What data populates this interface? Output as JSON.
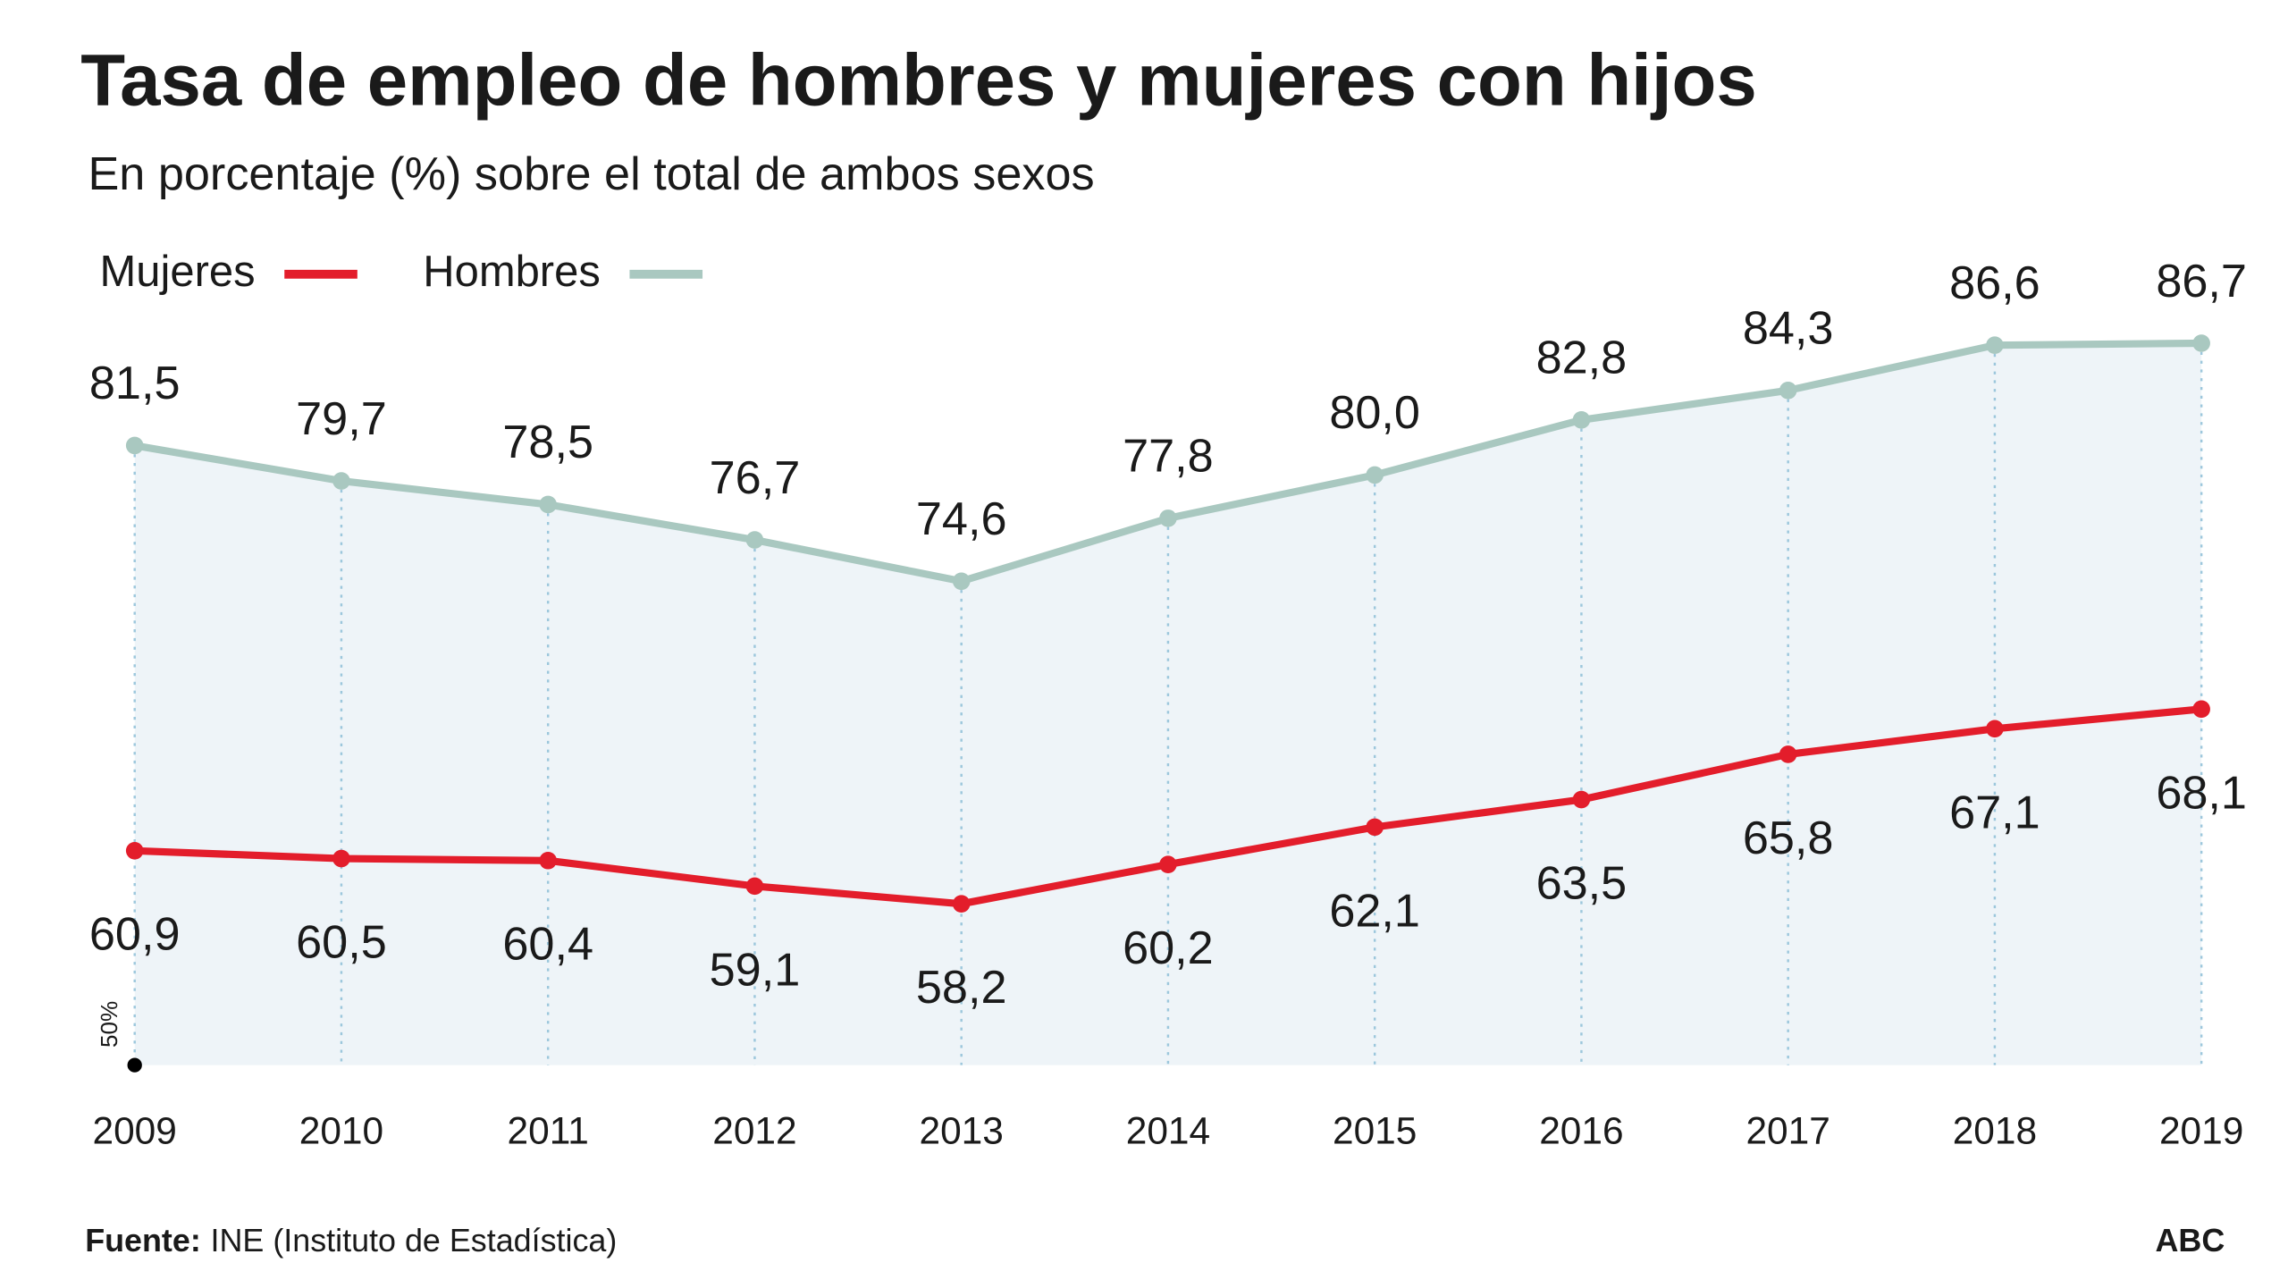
{
  "chart_data": {
    "type": "line",
    "title": "Tasa de empleo de hombres y mujeres con hijos",
    "subtitle": "En porcentaje (%) sobre el total de ambos sexos",
    "x": [
      2009,
      2010,
      2011,
      2012,
      2013,
      2014,
      2015,
      2016,
      2017,
      2018,
      2019
    ],
    "xlim": [
      2009,
      2019
    ],
    "xticks": [
      2009,
      2010,
      2011,
      2012,
      2013,
      2014,
      2015,
      2016,
      2017,
      2018,
      2019
    ],
    "ylim": [
      50,
      90
    ],
    "yticks": [
      {
        "value": 50,
        "label": "50%"
      }
    ],
    "series": [
      {
        "name": "Mujeres",
        "color": "#e31d2b",
        "values": [
          60.9,
          60.5,
          60.4,
          59.1,
          58.2,
          60.2,
          62.1,
          63.5,
          65.8,
          67.1,
          68.1
        ],
        "value_labels": [
          "60,9",
          "60,5",
          "60,4",
          "59,1",
          "58,2",
          "60,2",
          "62,1",
          "63,5",
          "65,8",
          "67,1",
          "68,1"
        ]
      },
      {
        "name": "Hombres",
        "color": "#a9c8c0",
        "values": [
          81.5,
          79.7,
          78.5,
          76.7,
          74.6,
          77.8,
          80.0,
          82.8,
          84.3,
          86.6,
          86.7
        ],
        "value_labels": [
          "81,5",
          "79,7",
          "78,5",
          "76,7",
          "74,6",
          "77,8",
          "80,0",
          "82,8",
          "84,3",
          "86,6",
          "86,7"
        ]
      }
    ],
    "area_color": "#eef4f8",
    "source_label": "Fuente:",
    "source": "INE (Instituto de Estadística)",
    "credit": "ABC"
  }
}
